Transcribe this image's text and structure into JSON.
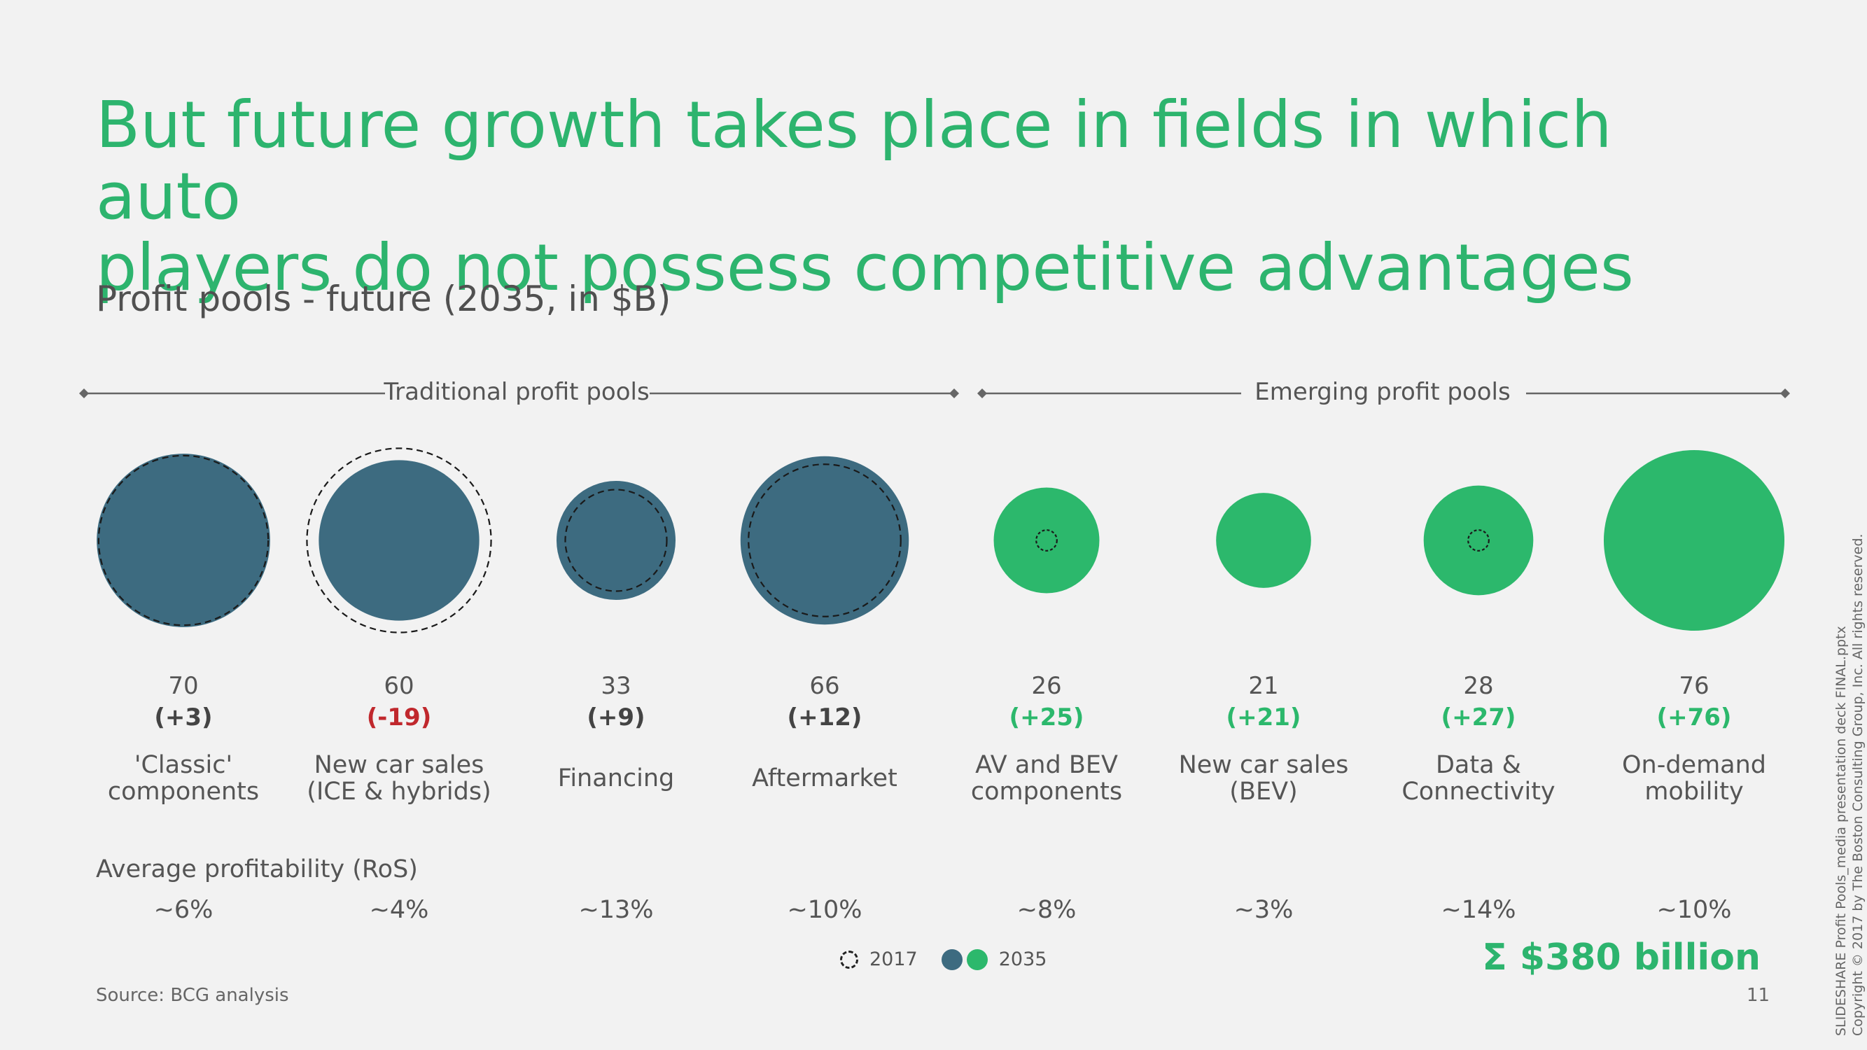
{
  "title": {
    "line1": "But future growth takes place in fields in which auto",
    "line2": "players do not possess competitive advantages"
  },
  "subtitle": "Profit pools - future (2035, in $B)",
  "groups": {
    "traditional": "Traditional profit pools",
    "emerging": "Emerging profit pools"
  },
  "ros_label": "Average profitability (RoS)",
  "legend": {
    "label_2017": "2017",
    "label_2035": "2035"
  },
  "total": "Σ $380 billion",
  "source": "Source: BCG analysis",
  "page_number": "11",
  "copyright": {
    "line1": "SLIDESHARE Profit Pools_media presentation deck FINAL.pptx",
    "line2": "Copyright © 2017 by The Boston Consulting Group, Inc. All rights reserved."
  },
  "colors": {
    "traditional": "#3d6b80",
    "emerging": "#2cb86c",
    "delta_negative": "#c0282d",
    "delta_positive_emerging": "#2cb86c",
    "delta_neutral": "#444444"
  },
  "chart_data": {
    "type": "bubble",
    "title": "Profit pools - future (2035, in $B)",
    "series": [
      {
        "name": "2035",
        "values": [
          70,
          60,
          33,
          66,
          26,
          21,
          28,
          76
        ]
      },
      {
        "name": "2017",
        "values": [
          67,
          79,
          24,
          54,
          1,
          0,
          1,
          0
        ]
      }
    ],
    "categories": [
      {
        "label_line1": "'Classic'",
        "label_line2": "components",
        "value_2035": "70",
        "delta": "(+3)",
        "ros": "~6%",
        "group": "traditional"
      },
      {
        "label_line1": "New car sales",
        "label_line2": "(ICE & hybrids)",
        "value_2035": "60",
        "delta": "(-19)",
        "ros": "~4%",
        "group": "traditional"
      },
      {
        "label_line1": "Financing",
        "label_line2": "",
        "value_2035": "33",
        "delta": "(+9)",
        "ros": "~13%",
        "group": "traditional"
      },
      {
        "label_line1": "Aftermarket",
        "label_line2": "",
        "value_2035": "66",
        "delta": "(+12)",
        "ros": "~10%",
        "group": "traditional"
      },
      {
        "label_line1": "AV and BEV",
        "label_line2": "components",
        "value_2035": "26",
        "delta": "(+25)",
        "ros": "~8%",
        "group": "emerging"
      },
      {
        "label_line1": "New car sales",
        "label_line2": "(BEV)",
        "value_2035": "21",
        "delta": "(+21)",
        "ros": "~3%",
        "group": "emerging"
      },
      {
        "label_line1": "Data &",
        "label_line2": "Connectivity",
        "value_2035": "28",
        "delta": "(+27)",
        "ros": "~14%",
        "group": "emerging"
      },
      {
        "label_line1": "On-demand",
        "label_line2": "mobility",
        "value_2035": "76",
        "delta": "(+76)",
        "ros": "~10%",
        "group": "emerging"
      }
    ]
  }
}
